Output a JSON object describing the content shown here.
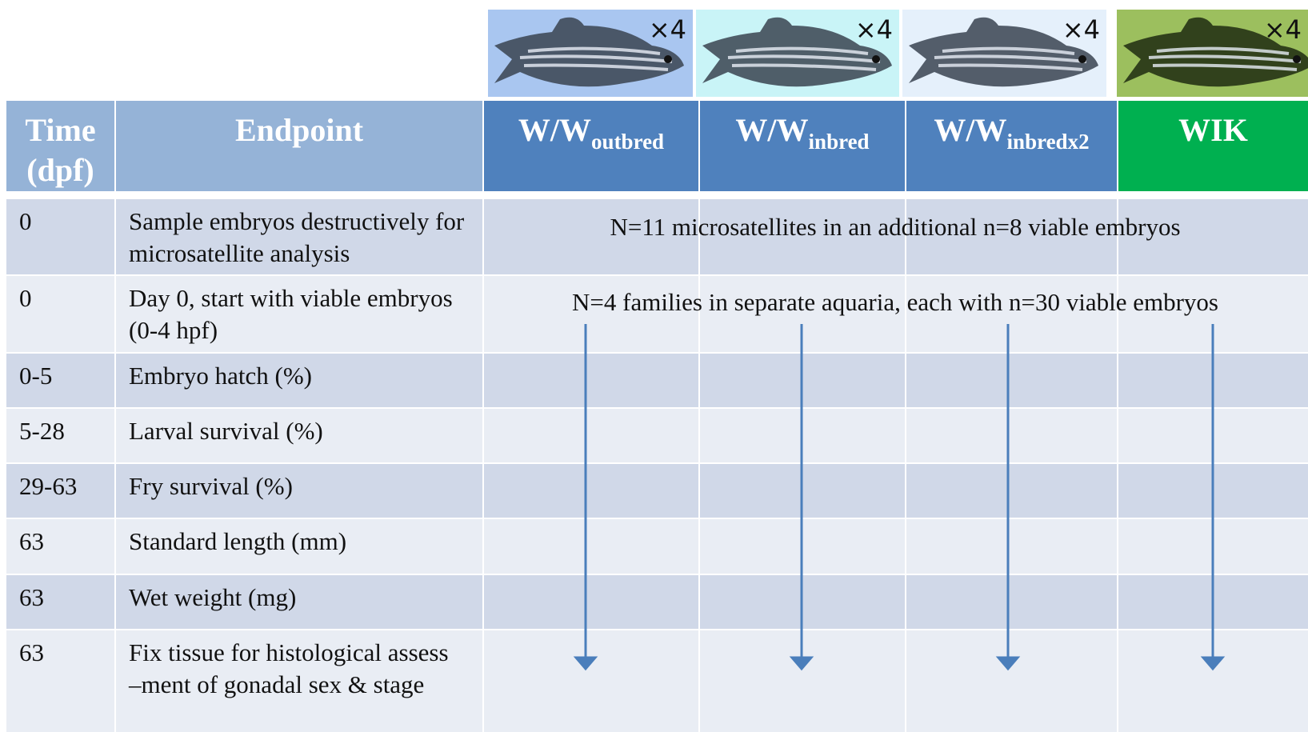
{
  "fish_panels": [
    {
      "label": "×4"
    },
    {
      "label": "×4"
    },
    {
      "label": "×4"
    },
    {
      "label": "×4"
    }
  ],
  "table": {
    "header": [
      {
        "main": "Time (dpf)"
      },
      {
        "main": "Endpoint"
      },
      {
        "main": "W/W",
        "sub": "outbred"
      },
      {
        "main": "W/W",
        "sub": "inbred"
      },
      {
        "main": "W/W",
        "sub": "inbredx2"
      },
      {
        "main": "WIK"
      }
    ],
    "rows": [
      [
        "0",
        "Sample embryos destructively for microsatellite analysis"
      ],
      [
        "0",
        "Day 0, start with viable embryos (0-4 hpf)"
      ],
      [
        "0-5",
        "Embryo hatch (%)"
      ],
      [
        "5-28",
        "Larval survival (%)"
      ],
      [
        "29-63",
        "Fry survival (%)"
      ],
      [
        "63",
        "Standard length (mm)"
      ],
      [
        "63",
        "Wet weight (mg)"
      ],
      [
        "63",
        "Fix tissue for histological assess –ment of gonadal sex & stage"
      ]
    ],
    "notes": [
      "N=11 microsatellites in an additional n=8 viable embryos",
      "N=4 families in separate aquaria, each with n=30 viable embryos"
    ]
  }
}
